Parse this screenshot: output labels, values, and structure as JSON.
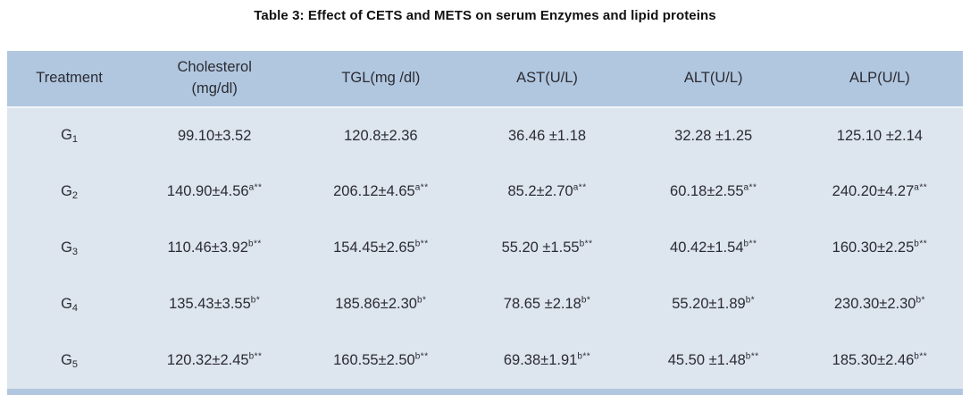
{
  "title": "Table 3: Effect of CETS and METS on serum Enzymes and lipid proteins",
  "colors": {
    "header_bg": "#b1c7df",
    "body_bg": "#dde5ee",
    "footer_bg": "#b1c7df",
    "text": "#2b2b33"
  },
  "table": {
    "headers": [
      {
        "lines": [
          "Treatment"
        ]
      },
      {
        "lines": [
          "Cholesterol",
          "(mg/dl)"
        ]
      },
      {
        "lines": [
          "TGL(mg /dl)"
        ]
      },
      {
        "lines": [
          "AST(U/L)"
        ]
      },
      {
        "lines": [
          "ALT(U/L)"
        ]
      },
      {
        "lines": [
          "ALP(U/L)"
        ]
      }
    ],
    "rows": [
      {
        "treatment": {
          "base": "G",
          "sub": "1"
        },
        "cells": [
          {
            "value": "99.10±3.52",
            "sup": ""
          },
          {
            "value": "120.8±2.36",
            "sup": ""
          },
          {
            "value": "36.46 ±1.18",
            "sup": ""
          },
          {
            "value": "32.28 ±1.25",
            "sup": ""
          },
          {
            "value": "125.10 ±2.14",
            "sup": ""
          }
        ]
      },
      {
        "treatment": {
          "base": "G",
          "sub": "2"
        },
        "cells": [
          {
            "value": "140.90±4.56",
            "sup": "a**"
          },
          {
            "value": "206.12±4.65",
            "sup": "a**"
          },
          {
            "value": "85.2±2.70",
            "sup": "a**"
          },
          {
            "value": "60.18±2.55",
            "sup": "a**"
          },
          {
            "value": "240.20±4.27",
            "sup": "a**"
          }
        ]
      },
      {
        "treatment": {
          "base": "G",
          "sub": "3"
        },
        "cells": [
          {
            "value": "110.46±3.92",
            "sup": "b**"
          },
          {
            "value": "154.45±2.65",
            "sup": "b**"
          },
          {
            "value": "55.20 ±1.55",
            "sup": "b**"
          },
          {
            "value": "40.42±1.54",
            "sup": "b**"
          },
          {
            "value": "160.30±2.25",
            "sup": "b**"
          }
        ]
      },
      {
        "treatment": {
          "base": "G",
          "sub": "4"
        },
        "cells": [
          {
            "value": "135.43±3.55",
            "sup": "b*"
          },
          {
            "value": "185.86±2.30",
            "sup": "b*"
          },
          {
            "value": "78.65 ±2.18",
            "sup": "b*"
          },
          {
            "value": "55.20±1.89",
            "sup": "b*"
          },
          {
            "value": "230.30±2.30",
            "sup": "b*"
          }
        ]
      },
      {
        "treatment": {
          "base": "G",
          "sub": "5"
        },
        "cells": [
          {
            "value": "120.32±2.45",
            "sup": "b**"
          },
          {
            "value": "160.55±2.50",
            "sup": "b**"
          },
          {
            "value": "69.38±1.91",
            "sup": "b**"
          },
          {
            "value": "45.50 ±1.48",
            "sup": "b**"
          },
          {
            "value": "185.30±2.46",
            "sup": "b**"
          }
        ]
      }
    ]
  }
}
